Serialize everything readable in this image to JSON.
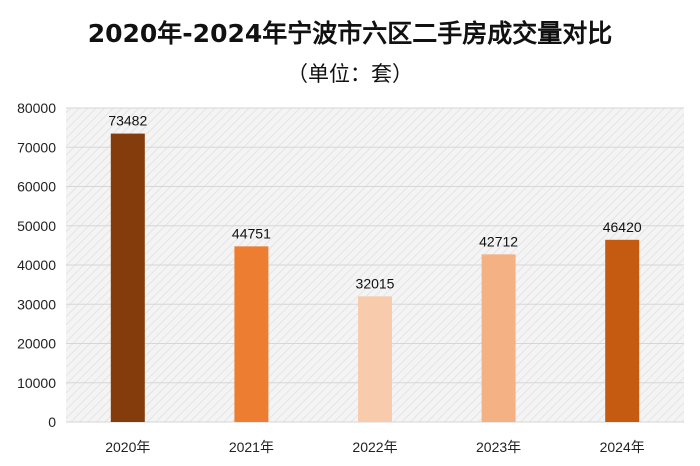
{
  "chart_data": {
    "type": "bar",
    "title": "2020年-2024年宁波市六区二手房成交量对比",
    "subtitle": "（单位：套）",
    "categories": [
      "2020年",
      "2021年",
      "2022年",
      "2023年",
      "2024年"
    ],
    "values": [
      73482,
      44751,
      32015,
      42712,
      46420
    ],
    "bar_colors": [
      "#843C0C",
      "#ED7D31",
      "#F8CBAD",
      "#F4B183",
      "#C55A11"
    ],
    "ylim": [
      0,
      80000
    ],
    "yticks": [
      0,
      10000,
      20000,
      30000,
      40000,
      50000,
      60000,
      70000,
      80000
    ],
    "grid": true,
    "xlabel": "",
    "ylabel": ""
  }
}
